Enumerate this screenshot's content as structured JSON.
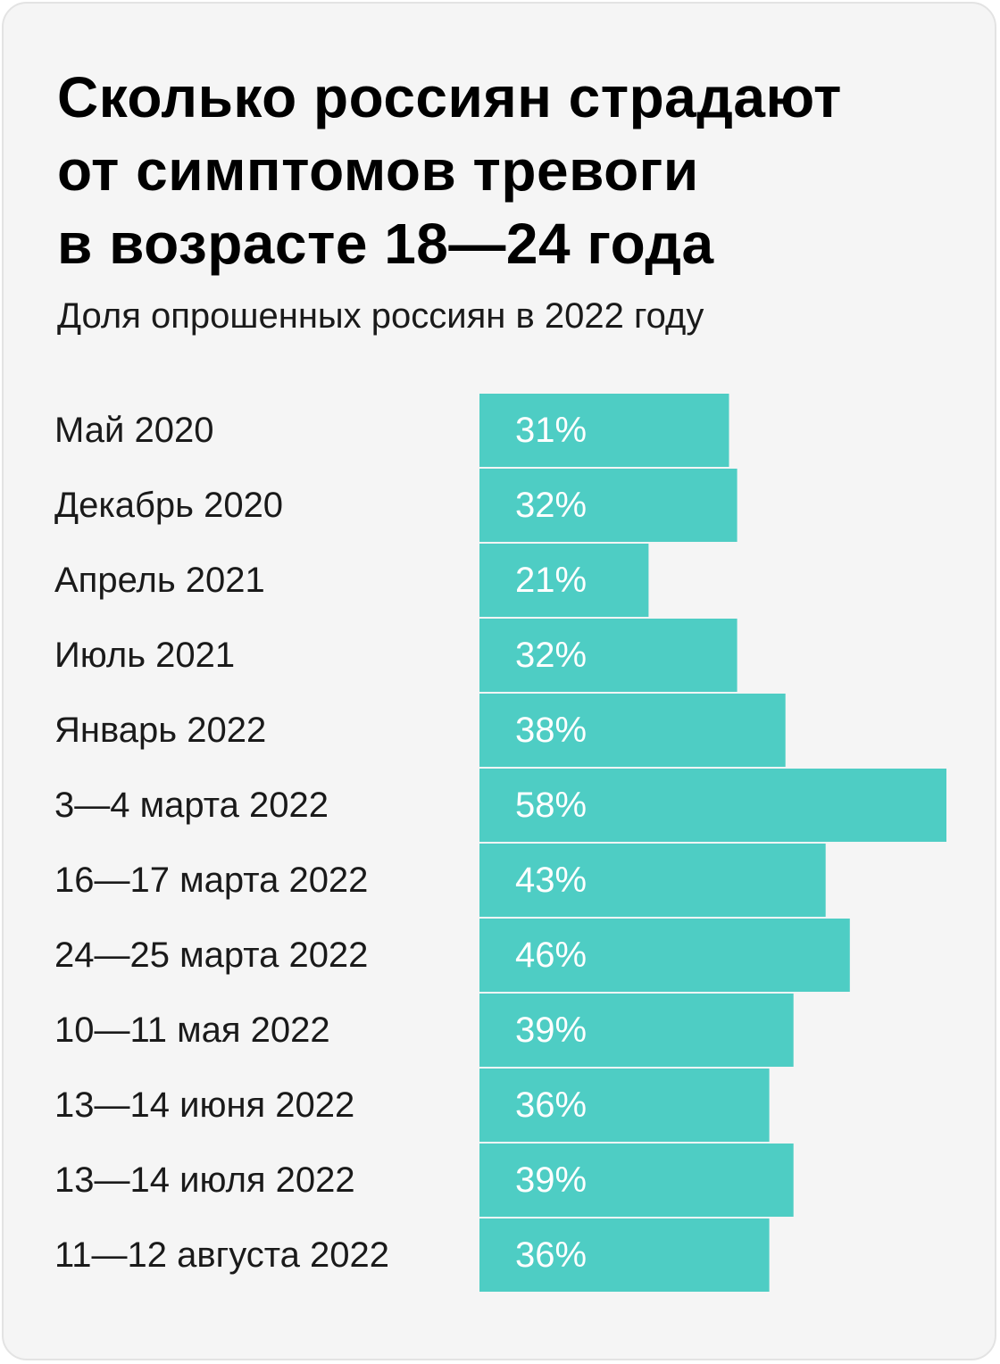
{
  "chart_data": {
    "type": "bar",
    "orientation": "horizontal",
    "title": "Сколько россиян страдают от симптомов тревоги в возрасте 18—24 года",
    "title_lines": [
      "Сколько россиян страдают",
      "от симптомов тревоги",
      "в возрасте 18—24 года"
    ],
    "subtitle": "Доля опрошенных россиян в 2022 году",
    "categories": [
      "Май 2020",
      "Декабрь 2020",
      "Апрель 2021",
      "Июль 2021",
      "Январь 2022",
      "3—4 марта 2022",
      "16—17 марта 2022",
      "24—25 марта 2022",
      "10—11 мая 2022",
      "13—14 июня 2022",
      "13—14 июля 2022",
      "11—12 августа 2022"
    ],
    "values": [
      31,
      32,
      21,
      32,
      38,
      58,
      43,
      46,
      39,
      36,
      39,
      36
    ],
    "value_labels": [
      "31%",
      "32%",
      "21%",
      "32%",
      "38%",
      "58%",
      "43%",
      "46%",
      "39%",
      "36%",
      "39%",
      "36%"
    ],
    "unit": "%",
    "xlim": [
      0,
      58
    ],
    "bar_color": "#4ecdc4",
    "value_label_color": "#ffffff",
    "background": "#f5f5f5",
    "grid": false,
    "legend": "none"
  }
}
